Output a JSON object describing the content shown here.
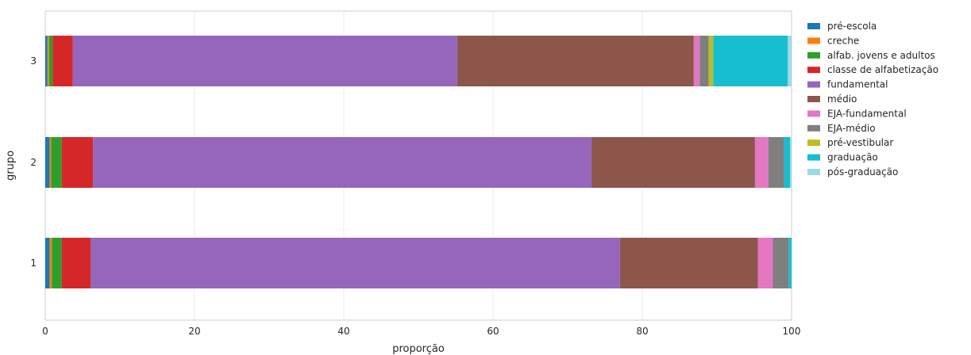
{
  "chart_data": {
    "type": "bar",
    "orientation": "horizontal",
    "stacked": true,
    "title": "",
    "xlabel": "proporção",
    "ylabel": "grupo",
    "xlim": [
      0,
      100
    ],
    "xticks": [
      0,
      20,
      40,
      60,
      80,
      100
    ],
    "grid": true,
    "legend_position": "right-outside",
    "categories": [
      "1",
      "2",
      "3"
    ],
    "series": [
      {
        "name": "pré-escola",
        "color": "#1f77b4",
        "values": [
          0.6,
          0.6,
          0.3
        ]
      },
      {
        "name": "creche",
        "color": "#ff7f0e",
        "values": [
          0.3,
          0.2,
          0.2
        ]
      },
      {
        "name": "alfab. jovens e adultos",
        "color": "#2ca02c",
        "values": [
          1.3,
          1.4,
          0.5
        ]
      },
      {
        "name": "classe de alfabetização",
        "color": "#d62728",
        "values": [
          3.9,
          4.2,
          2.7
        ]
      },
      {
        "name": "fundamental",
        "color": "#9467bd",
        "values": [
          70.9,
          66.8,
          51.5
        ]
      },
      {
        "name": "médio",
        "color": "#8c564b",
        "values": [
          18.5,
          21.9,
          31.7
        ]
      },
      {
        "name": "EJA-fundamental",
        "color": "#e377c2",
        "values": [
          2.0,
          1.8,
          0.8
        ]
      },
      {
        "name": "EJA-médio",
        "color": "#7f7f7f",
        "values": [
          2.1,
          2.1,
          1.2
        ]
      },
      {
        "name": "pré-vestibular",
        "color": "#bcbd22",
        "values": [
          0.0,
          0.0,
          0.6
        ]
      },
      {
        "name": "graduação",
        "color": "#17becf",
        "values": [
          0.4,
          0.8,
          10.0
        ]
      },
      {
        "name": "pós-graduação",
        "color": "#9edae5",
        "values": [
          0.0,
          0.2,
          0.5
        ]
      }
    ]
  }
}
